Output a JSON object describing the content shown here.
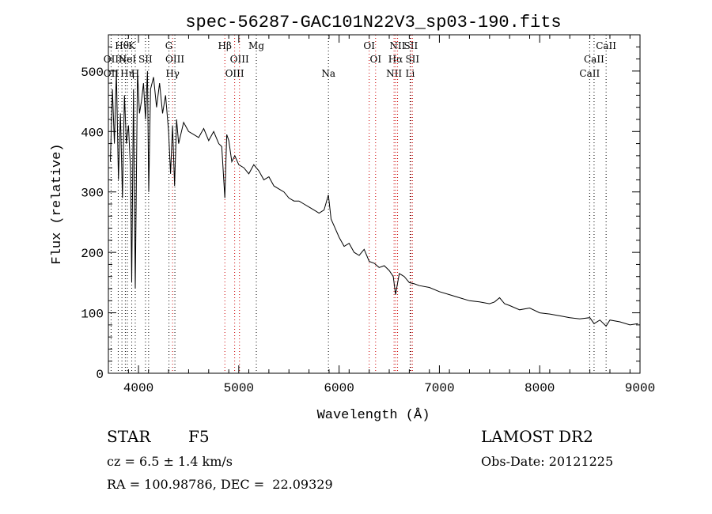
{
  "chart_data": {
    "type": "line",
    "title": "spec-56287-GAC101N22V3_sp03-190.fits",
    "xlabel": "Wavelength (Å)",
    "ylabel": "Flux (relative)",
    "xlim": [
      3700,
      9000
    ],
    "ylim": [
      0,
      560
    ],
    "xticks": [
      4000,
      5000,
      6000,
      7000,
      8000,
      9000
    ],
    "yticks": [
      0,
      100,
      200,
      300,
      400,
      500
    ],
    "grid": false,
    "legend": "none",
    "series": [
      {
        "color": "#000000",
        "x": [
          3720,
          3740,
          3760,
          3780,
          3800,
          3820,
          3840,
          3860,
          3880,
          3900,
          3920,
          3933,
          3950,
          3968,
          3990,
          4010,
          4030,
          4050,
          4070,
          4090,
          4102,
          4120,
          4150,
          4180,
          4210,
          4240,
          4270,
          4300,
          4320,
          4340,
          4360,
          4380,
          4400,
          4450,
          4500,
          4550,
          4600,
          4650,
          4700,
          4750,
          4800,
          4830,
          4861,
          4880,
          4900,
          4930,
          4960,
          5000,
          5050,
          5100,
          5150,
          5200,
          5250,
          5300,
          5350,
          5400,
          5450,
          5500,
          5550,
          5600,
          5650,
          5700,
          5750,
          5800,
          5850,
          5893,
          5920,
          5960,
          6000,
          6050,
          6100,
          6150,
          6200,
          6250,
          6300,
          6350,
          6400,
          6450,
          6500,
          6540,
          6563,
          6600,
          6650,
          6700,
          6750,
          6800,
          6900,
          7000,
          7100,
          7200,
          7300,
          7400,
          7500,
          7550,
          7600,
          7650,
          7700,
          7800,
          7900,
          8000,
          8100,
          8200,
          8300,
          8400,
          8500,
          8542,
          8600,
          8662,
          8700,
          8800,
          8900,
          8980
        ],
        "y": [
          350,
          470,
          380,
          500,
          320,
          430,
          290,
          460,
          380,
          410,
          340,
          150,
          470,
          140,
          500,
          430,
          450,
          480,
          420,
          500,
          300,
          470,
          490,
          440,
          480,
          430,
          460,
          400,
          330,
          410,
          310,
          420,
          380,
          415,
          400,
          395,
          390,
          405,
          385,
          400,
          380,
          375,
          290,
          395,
          385,
          350,
          360,
          345,
          340,
          330,
          345,
          335,
          320,
          325,
          310,
          305,
          300,
          290,
          285,
          285,
          280,
          275,
          270,
          265,
          270,
          295,
          255,
          240,
          225,
          210,
          215,
          200,
          195,
          205,
          185,
          182,
          175,
          178,
          170,
          160,
          130,
          165,
          160,
          150,
          148,
          145,
          142,
          135,
          130,
          125,
          120,
          118,
          115,
          118,
          125,
          115,
          112,
          105,
          108,
          100,
          98,
          95,
          92,
          90,
          92,
          82,
          88,
          78,
          88,
          85,
          80,
          82
        ]
      }
    ],
    "annotations": {
      "lines": [
        {
          "wavelength": 3727,
          "color": "#000000",
          "labels": [
            {
              "row": 2,
              "text": "OII"
            },
            {
              "row": 3,
              "text": "OII"
            }
          ]
        },
        {
          "wavelength": 3798,
          "color": "#000000",
          "labels": []
        },
        {
          "wavelength": 3835,
          "color": "#000000",
          "labels": [
            {
              "row": 1,
              "text": "Hθ"
            }
          ]
        },
        {
          "wavelength": 3869,
          "color": "#000000",
          "labels": [
            {
              "row": 2,
              "text": "Ne"
            }
          ]
        },
        {
          "wavelength": 3889,
          "color": "#000000",
          "labels": [
            {
              "row": 2,
              "text": "HeI"
            },
            {
              "row": 3,
              "text": "Hη"
            }
          ]
        },
        {
          "wavelength": 3933,
          "color": "#000000",
          "labels": [
            {
              "row": 1,
              "text": "K"
            }
          ]
        },
        {
          "wavelength": 3968,
          "color": "#000000",
          "labels": [
            {
              "row": 3,
              "text": "H"
            }
          ]
        },
        {
          "wavelength": 4070,
          "color": "#000000",
          "labels": [
            {
              "row": 2,
              "text": "SII"
            }
          ]
        },
        {
          "wavelength": 4101,
          "color": "#000000",
          "labels": []
        },
        {
          "wavelength": 4304,
          "color": "#000000",
          "labels": [
            {
              "row": 1,
              "text": "G"
            }
          ]
        },
        {
          "wavelength": 4340,
          "color": "#cc0000",
          "labels": [
            {
              "row": 3,
              "text": "Hγ"
            }
          ]
        },
        {
          "wavelength": 4363,
          "color": "#000000",
          "labels": [
            {
              "row": 2,
              "text": "OIII"
            }
          ]
        },
        {
          "wavelength": 4861,
          "color": "#cc0000",
          "labels": [
            {
              "row": 1,
              "text": "Hβ"
            }
          ]
        },
        {
          "wavelength": 4959,
          "color": "#cc0000",
          "labels": [
            {
              "row": 3,
              "text": "OIII"
            }
          ]
        },
        {
          "wavelength": 5007,
          "color": "#cc0000",
          "labels": [
            {
              "row": 2,
              "text": "OIII"
            }
          ]
        },
        {
          "wavelength": 5175,
          "color": "#000000",
          "labels": [
            {
              "row": 1,
              "text": "Mg"
            }
          ]
        },
        {
          "wavelength": 5894,
          "color": "#000000",
          "labels": [
            {
              "row": 3,
              "text": "Na"
            }
          ]
        },
        {
          "wavelength": 6300,
          "color": "#cc0000",
          "labels": [
            {
              "row": 1,
              "text": "OI"
            }
          ]
        },
        {
          "wavelength": 6364,
          "color": "#cc0000",
          "labels": [
            {
              "row": 2,
              "text": "OI"
            }
          ]
        },
        {
          "wavelength": 6548,
          "color": "#cc0000",
          "labels": [
            {
              "row": 3,
              "text": "NII"
            }
          ]
        },
        {
          "wavelength": 6563,
          "color": "#cc0000",
          "labels": [
            {
              "row": 2,
              "text": "Hα"
            }
          ]
        },
        {
          "wavelength": 6583,
          "color": "#cc0000",
          "labels": [
            {
              "row": 1,
              "text": "NII"
            }
          ]
        },
        {
          "wavelength": 6708,
          "color": "#000000",
          "labels": [
            {
              "row": 3,
              "text": "Li"
            }
          ]
        },
        {
          "wavelength": 6716,
          "color": "#cc0000",
          "labels": [
            {
              "row": 1,
              "text": "SII"
            }
          ]
        },
        {
          "wavelength": 6731,
          "color": "#cc0000",
          "labels": [
            {
              "row": 2,
              "text": "SII"
            }
          ]
        },
        {
          "wavelength": 8498,
          "color": "#000000",
          "labels": [
            {
              "row": 3,
              "text": "CaII"
            }
          ]
        },
        {
          "wavelength": 8542,
          "color": "#000000",
          "labels": [
            {
              "row": 2,
              "text": "CaII"
            }
          ]
        },
        {
          "wavelength": 8662,
          "color": "#000000",
          "labels": [
            {
              "row": 1,
              "text": "CaII"
            }
          ]
        }
      ]
    }
  },
  "info": {
    "class_label": "STAR",
    "subclass_label": "F5",
    "survey_label": "LAMOST DR2",
    "redshift_text": "cz = 6.5 ± 1.4 km/s",
    "obs_date_text": "Obs-Date: 20121225",
    "coords_text": "RA = 100.98786, DEC =  22.09329"
  }
}
